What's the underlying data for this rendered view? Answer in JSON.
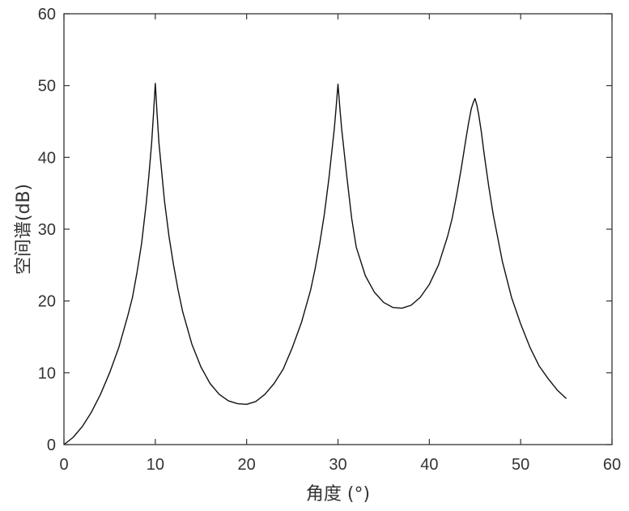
{
  "chart_data": {
    "type": "line",
    "title": "",
    "xlabel": "角度 (°)",
    "ylabel": "空间谱(dB)",
    "xlim": [
      0,
      60
    ],
    "ylim": [
      0,
      60
    ],
    "xticks": [
      "0",
      "10",
      "20",
      "30",
      "40",
      "50",
      "60"
    ],
    "yticks": [
      "0",
      "10",
      "20",
      "30",
      "40",
      "50",
      "60"
    ],
    "grid": false,
    "series": [
      {
        "color": "#111111",
        "x": [
          0,
          1,
          2,
          3,
          4,
          5,
          6,
          7,
          7.5,
          8,
          8.5,
          9,
          9.3,
          9.6,
          9.8,
          10,
          10.2,
          10.4,
          10.7,
          11,
          11.5,
          12,
          12.5,
          13,
          14,
          15,
          16,
          17,
          18,
          19,
          20,
          21,
          22,
          23,
          24,
          25,
          26,
          27,
          27.5,
          28,
          28.5,
          29,
          29.3,
          29.6,
          29.8,
          30,
          30.2,
          30.4,
          30.7,
          31,
          31.5,
          32,
          33,
          34,
          35,
          36,
          37,
          38,
          39,
          40,
          41,
          42,
          42.5,
          43,
          43.5,
          44,
          44.3,
          44.6,
          44.8,
          45,
          45.2,
          45.4,
          45.7,
          46,
          46.5,
          47,
          48,
          49,
          50,
          51,
          52,
          53,
          54,
          55
        ],
        "y": [
          0,
          1,
          2.5,
          4.5,
          7,
          10,
          13.5,
          18,
          20.5,
          24,
          28,
          33.5,
          37.5,
          42,
          46,
          50.3,
          46,
          42,
          38,
          34,
          29,
          25,
          21.5,
          18.5,
          14,
          10.8,
          8.5,
          7,
          6.1,
          5.7,
          5.6,
          6,
          7,
          8.5,
          10.5,
          13.5,
          17,
          21.5,
          24.5,
          28,
          32,
          37,
          40.5,
          44,
          47,
          50.2,
          47,
          44,
          40.5,
          37,
          31.5,
          27.5,
          23.5,
          21.2,
          19.8,
          19.1,
          19,
          19.4,
          20.5,
          22.3,
          25,
          29,
          31.5,
          34.8,
          38.5,
          42.5,
          44.8,
          46.8,
          47.6,
          48.2,
          47.3,
          46,
          43.5,
          40.5,
          36,
          32,
          25.5,
          20.5,
          16.8,
          13.6,
          11,
          9.2,
          7.6,
          6.4
        ]
      }
    ]
  }
}
